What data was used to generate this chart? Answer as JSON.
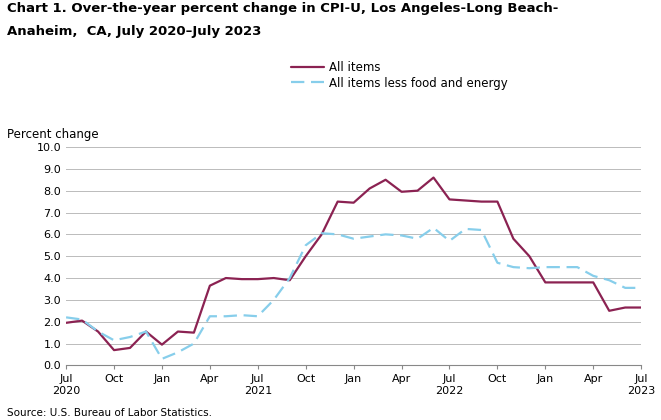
{
  "title_line1": "Chart 1. Over-the-year percent change in CPI-U, Los Angeles-Long Beach-",
  "title_line2": "Anaheim,  CA, July 2020–July 2023",
  "ylabel": "Percent change",
  "source": "Source: U.S. Bureau of Labor Statistics.",
  "ylim": [
    0.0,
    10.0
  ],
  "yticks": [
    0.0,
    1.0,
    2.0,
    3.0,
    4.0,
    5.0,
    6.0,
    7.0,
    8.0,
    9.0,
    10.0
  ],
  "all_items_color": "#8B2252",
  "core_color": "#87CEEB",
  "all_items_label": "All items",
  "core_label": "All items less food and energy",
  "x_tick_labels": [
    "Jul\n2020",
    "Oct",
    "Jan",
    "Apr",
    "Jul\n2021",
    "Oct",
    "Jan",
    "Apr",
    "Jul\n2022",
    "Oct",
    "Jan",
    "Apr",
    "Jul\n2023"
  ],
  "x_tick_positions": [
    0,
    3,
    6,
    9,
    12,
    15,
    18,
    21,
    24,
    27,
    30,
    33,
    36
  ],
  "background_color": "#ffffff",
  "grid_color": "#bbbbbb",
  "all_items_y": [
    1.95,
    2.05,
    1.55,
    0.7,
    0.8,
    1.55,
    0.95,
    1.55,
    1.5,
    3.65,
    4.0,
    3.95,
    3.95,
    4.0,
    3.9,
    5.0,
    6.0,
    7.5,
    7.45,
    8.1,
    8.5,
    7.95,
    8.0,
    8.6,
    7.6,
    7.55,
    7.5,
    7.5,
    5.8,
    5.0,
    3.8,
    3.8,
    3.8,
    3.8,
    2.5,
    2.65,
    2.65
  ],
  "core_y": [
    2.2,
    2.1,
    1.55,
    1.15,
    1.3,
    1.55,
    0.3,
    0.6,
    1.0,
    2.25,
    2.25,
    2.3,
    2.25,
    3.0,
    4.0,
    5.5,
    6.05,
    6.0,
    5.8,
    5.9,
    6.0,
    5.95,
    5.8,
    6.3,
    5.7,
    6.25,
    6.2,
    4.7,
    4.5,
    4.45,
    4.5,
    4.5,
    4.5,
    4.1,
    3.9,
    3.55,
    3.55
  ]
}
